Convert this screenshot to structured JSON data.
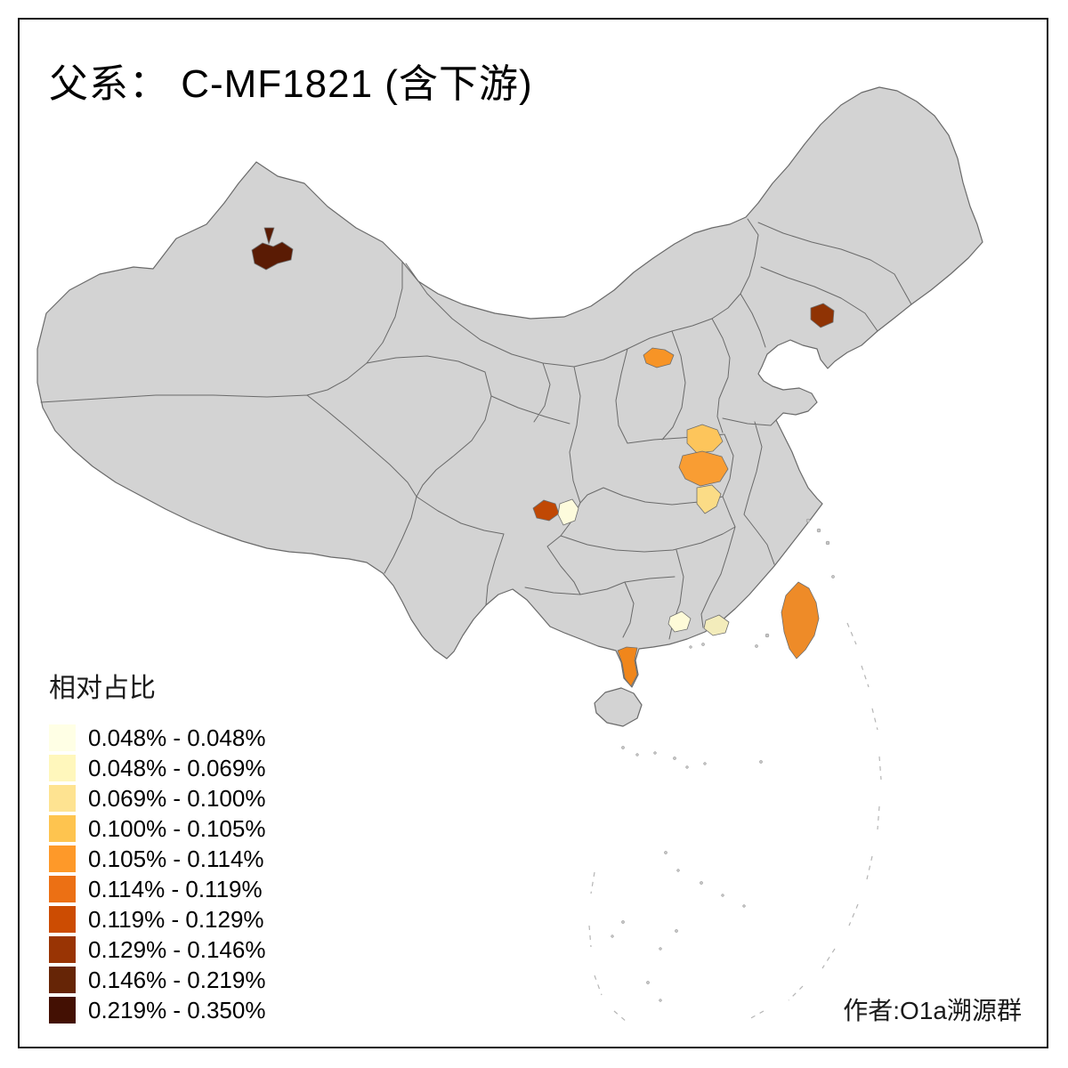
{
  "title": "父系： C-MF1821 (含下游)",
  "attribution": "作者:O1a溯源群",
  "legend": {
    "title": "相对占比",
    "items": [
      {
        "label": "0.048% - 0.048%",
        "color": "#FFFFE5"
      },
      {
        "label": "0.048% - 0.069%",
        "color": "#FFF7BC"
      },
      {
        "label": "0.069% - 0.100%",
        "color": "#FEE391"
      },
      {
        "label": "0.100% - 0.105%",
        "color": "#FEC44F"
      },
      {
        "label": "0.105% - 0.114%",
        "color": "#FE9929"
      },
      {
        "label": "0.114% - 0.119%",
        "color": "#EC7014"
      },
      {
        "label": "0.119% - 0.129%",
        "color": "#CC4C02"
      },
      {
        "label": "0.129% - 0.146%",
        "color": "#993404"
      },
      {
        "label": "0.146% - 0.219%",
        "color": "#662506"
      },
      {
        "label": "0.219% - 0.350%",
        "color": "#431003"
      }
    ]
  },
  "map": {
    "base_fill": "#D3D3D3",
    "border_color": "#6A6A6A",
    "background": "#FFFFFF",
    "frame_color": "#111111",
    "regions": [
      {
        "id": "xinjiang-area",
        "color": "#5A1B04"
      },
      {
        "id": "liaoning-area",
        "color": "#8F3304"
      },
      {
        "id": "shanxi-area",
        "color": "#F79426"
      },
      {
        "id": "henan-north-area",
        "color": "#FDC55B"
      },
      {
        "id": "henan-central-area",
        "color": "#F99D33"
      },
      {
        "id": "henan-south-area",
        "color": "#FBDC86"
      },
      {
        "id": "sichuan-area",
        "color": "#C04804"
      },
      {
        "id": "chongqing-area",
        "color": "#FDFBDC"
      },
      {
        "id": "guangdong-west-area",
        "color": "#FEFBD8"
      },
      {
        "id": "guangdong-east-area",
        "color": "#F3ECBB"
      },
      {
        "id": "leizhou-area",
        "color": "#F0861B"
      },
      {
        "id": "taiwan",
        "color": "#EE8B28"
      }
    ]
  }
}
